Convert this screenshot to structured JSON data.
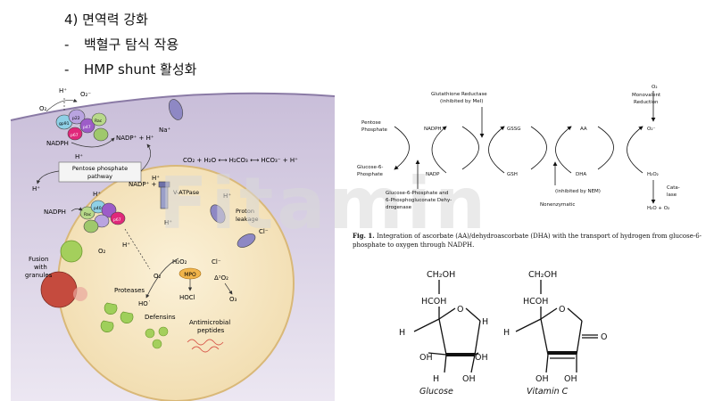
{
  "bullets": {
    "heading": "4) 면역력 강화",
    "item1": "백혈구 탐식 작용",
    "item2": "HMP shunt 활성화"
  },
  "watermark": "Fitamin",
  "phagocyte": {
    "h_plus": "H⁺",
    "o2_minus": "O₂⁻",
    "o2": "O₂",
    "na_plus": "Na⁺",
    "nadph": "NADPH",
    "nadp_plus_h": "NADP⁺ + H⁺",
    "ppp_line1": "Pentose phosphate",
    "ppp_line2": "pathway",
    "co2_eq": "CO₂ + H₂O ⟷ H₂CO₃ ⟷ HCO₃⁻ + H⁺",
    "v_atpase": "V-ATPase",
    "proton_leakage_1": "Proton",
    "proton_leakage_2": "leakage",
    "cl_minus": "Cl⁻",
    "h2o2": "H₂O₂",
    "mpo": "MPO",
    "ho_radical": "HO˙",
    "hocl": "HOCl",
    "delta_o2": "Δ¹O₂",
    "o3": "O₃",
    "fusion_1": "Fusion",
    "fusion_2": "with",
    "fusion_3": "granules",
    "proteases": "Proteases",
    "defensins": "Defensins",
    "antimicrobial_1": "Antimicrobial",
    "antimicrobial_2": "peptides",
    "gp91": "gp91",
    "p22": "p22",
    "p47": "p47",
    "p67": "p67",
    "p40": "p40",
    "rac": "Rac"
  },
  "cycle": {
    "gr_line1": "Glutathione Reductase",
    "gr_line2": "(inhibited by MeI)",
    "mono_line1": "Monovalent",
    "mono_line2": "Reduction",
    "o2": "O₂",
    "pentose_1": "Pentose",
    "pentose_2": "Phosphate",
    "nadph": "NADPH",
    "gssg": "GSSG",
    "aa": "AA",
    "o2_minus": "O₂⁻",
    "g6p_1": "Glucose-6-",
    "g6p_2": "Phosphate",
    "nadp": "NADP",
    "gsh": "GSH",
    "dha": "DHA",
    "h2o2": "H₂O₂",
    "cata_1": "Cata-",
    "cata_2": "lase",
    "h2o_o2": "H₂O + O₂",
    "nem": "(inhibited by NEM)",
    "nonenz": "Nonenzymatic",
    "g6pd_1": "Glucose-6-Phosphate and",
    "g6pd_2": "6-Phosphogluconate Dehy-",
    "g6pd_3": "drogenase"
  },
  "caption": {
    "fig": "Fig. 1.",
    "text": " Integration of ascorbate (AA)/dehydroascorbate (DHA) with the transport of hydrogen from glucose-6-phosphate to oxygen through NADPH."
  },
  "structures": {
    "ch2oh": "CH₂OH",
    "hcoh": "HCOH",
    "o": "O",
    "h": "H",
    "oh": "OH",
    "glucose": "Glucose",
    "vitamin_c": "Vitamin C"
  }
}
